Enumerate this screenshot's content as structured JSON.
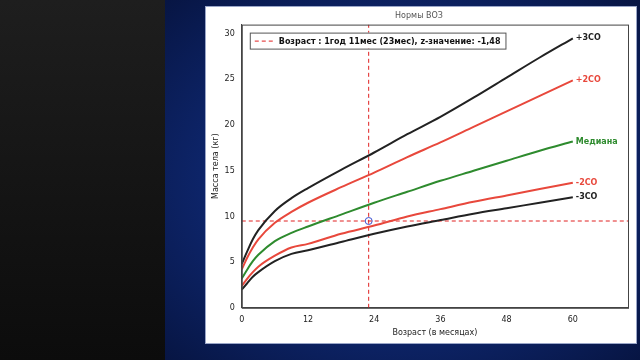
{
  "chart_data": {
    "type": "line",
    "title": "Нормы ВОЗ",
    "x_label": "Возраст (в месяцах)",
    "y_label": "Масса тела (кг)",
    "x": [
      0,
      1,
      2,
      3,
      6,
      9,
      12,
      18,
      24,
      30,
      36,
      42,
      48,
      54,
      60
    ],
    "series": [
      {
        "name": "+3СО",
        "color": "#222222",
        "line_style": "solid",
        "values": [
          4.8,
          6.2,
          7.5,
          8.5,
          10.6,
          12.0,
          13.1,
          15.1,
          17.0,
          19.0,
          20.9,
          23.0,
          25.2,
          27.4,
          29.5
        ]
      },
      {
        "name": "+2СО",
        "color": "#e8483c",
        "line_style": "solid",
        "values": [
          4.2,
          5.5,
          6.6,
          7.5,
          9.3,
          10.5,
          11.5,
          13.2,
          14.8,
          16.5,
          18.1,
          19.8,
          21.5,
          23.2,
          24.9
        ]
      },
      {
        "name": "Медиана",
        "color": "#2e8b2e",
        "line_style": "solid",
        "values": [
          3.2,
          4.2,
          5.1,
          5.8,
          7.3,
          8.2,
          8.9,
          10.2,
          11.5,
          12.7,
          13.9,
          15.0,
          16.1,
          17.2,
          18.2
        ]
      },
      {
        "name": "-2СО",
        "color": "#e8483c",
        "line_style": "solid",
        "values": [
          2.4,
          3.2,
          3.9,
          4.5,
          5.7,
          6.6,
          7.0,
          8.1,
          9.0,
          10.0,
          10.8,
          11.6,
          12.3,
          13.0,
          13.7
        ]
      },
      {
        "name": "-3СО",
        "color": "#222222",
        "line_style": "solid",
        "values": [
          2.0,
          2.7,
          3.4,
          3.9,
          5.1,
          5.9,
          6.3,
          7.2,
          8.1,
          8.9,
          9.6,
          10.3,
          10.9,
          11.5,
          12.1
        ]
      }
    ],
    "annotation": {
      "text": "Возраст : 1год 11мес (23мес), z-значение: -1,48",
      "x": 23,
      "y": 9.5,
      "color": "#e02020",
      "line_style": "dashed",
      "marker": "circle"
    },
    "xlim": [
      0,
      70
    ],
    "xticks": [
      0,
      12,
      24,
      36,
      48,
      60
    ],
    "ylim": [
      0,
      31
    ],
    "yticks": [
      0,
      5,
      10,
      15,
      20,
      25,
      30
    ],
    "grid": false,
    "legend": "upper left"
  }
}
